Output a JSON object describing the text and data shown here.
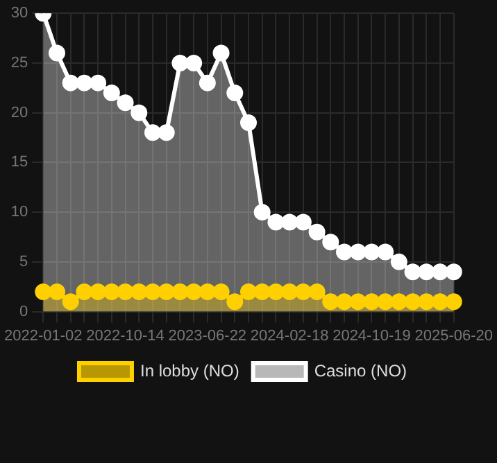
{
  "chart_data": {
    "type": "area",
    "categories": [
      "2022-01-02",
      null,
      null,
      null,
      null,
      null,
      "2022-10-14",
      null,
      null,
      null,
      null,
      null,
      "2023-06-22",
      null,
      null,
      null,
      null,
      null,
      "2024-02-18",
      null,
      null,
      null,
      null,
      null,
      "2024-10-19",
      null,
      null,
      null,
      null,
      null,
      "2025-06-20"
    ],
    "series": [
      {
        "name": "In lobby (NO)",
        "color": "#ffd000",
        "values": [
          2,
          2,
          1,
          2,
          2,
          2,
          2,
          2,
          2,
          2,
          2,
          2,
          2,
          2,
          1,
          2,
          2,
          2,
          2,
          2,
          2,
          1,
          1,
          1,
          1,
          1,
          1,
          1,
          1,
          1,
          1
        ]
      },
      {
        "name": "Casino (NO)",
        "color": "#ffffff",
        "values": [
          30,
          26,
          23,
          23,
          23,
          22,
          21,
          20,
          18,
          18,
          25,
          25,
          23,
          26,
          22,
          19,
          10,
          9,
          9,
          9,
          8,
          7,
          6,
          6,
          6,
          6,
          5,
          4,
          4,
          4,
          4
        ]
      }
    ],
    "ylim": [
      0,
      30
    ],
    "yticks": [
      0,
      5,
      10,
      15,
      20,
      25,
      30
    ],
    "grid": true,
    "legend": "bottom",
    "marker": "circle"
  }
}
